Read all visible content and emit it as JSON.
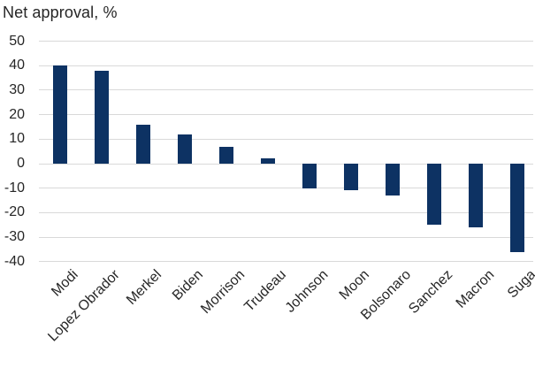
{
  "page": {
    "background_color": "#ffffff",
    "text_color": "#262626"
  },
  "chart_data": {
    "type": "bar",
    "title": "Net approval, %",
    "categories": [
      "Modi",
      "Lopez Obrador",
      "Merkel",
      "Biden",
      "Morrison",
      "Trudeau",
      "Johnson",
      "Moon",
      "Bolsonaro",
      "Sanchez",
      "Macron",
      "Suga"
    ],
    "values": [
      40,
      38,
      16,
      12,
      7,
      2,
      -10,
      -11,
      -13,
      -25,
      -26,
      -36
    ],
    "xlabel": "",
    "ylabel": "",
    "ylim": [
      -40,
      50
    ],
    "yticks": [
      50,
      40,
      30,
      20,
      10,
      0,
      -10,
      -20,
      -30,
      -40
    ],
    "grid": true,
    "legend": false,
    "x_label_rotation_deg": -45,
    "bar_color": "#0d3263",
    "gridline_color": "#d9d9d9",
    "tick_text_color": "#262626"
  }
}
